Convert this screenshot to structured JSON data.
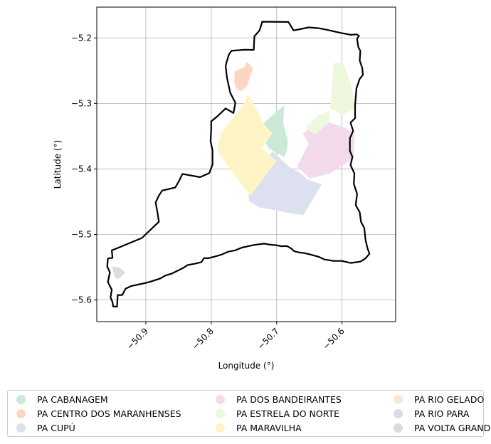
{
  "chart_data": {
    "type": "map",
    "xlabel": "Longitude (°)",
    "ylabel": "Latitude (°)",
    "xlim": [
      -50.975,
      -50.518
    ],
    "ylim": [
      -5.633,
      -5.153
    ],
    "xticks": [
      -50.9,
      -50.8,
      -50.7,
      -50.6
    ],
    "xtick_labels": [
      "−50.9",
      "−50.8",
      "−50.7",
      "−50.6"
    ],
    "yticks": [
      -5.2,
      -5.3,
      -5.4,
      -5.5,
      -5.6
    ],
    "ytick_labels": [
      "−5.2",
      "−5.3",
      "−5.4",
      "−5.5",
      "−5.6"
    ],
    "grid": true,
    "legend_position": "bottom",
    "boundary": {
      "color": "#000000",
      "coordinates": [
        [
          -50.722,
          -5.1753
        ],
        [
          -50.682,
          -5.1757
        ],
        [
          -50.674,
          -5.1886
        ],
        [
          -50.651,
          -5.1839
        ],
        [
          -50.636,
          -5.1851
        ],
        [
          -50.624,
          -5.1874
        ],
        [
          -50.601,
          -5.1925
        ],
        [
          -50.586,
          -5.1953
        ],
        [
          -50.578,
          -5.1945
        ],
        [
          -50.574,
          -5.1968
        ],
        [
          -50.577,
          -5.2015
        ],
        [
          -50.575,
          -5.2143
        ],
        [
          -50.572,
          -5.2198
        ],
        [
          -50.573,
          -5.2347
        ],
        [
          -50.569,
          -5.2461
        ],
        [
          -50.568,
          -5.2564
        ],
        [
          -50.573,
          -5.2625
        ],
        [
          -50.578,
          -5.2771
        ],
        [
          -50.58,
          -5.3026
        ],
        [
          -50.58,
          -5.3224
        ],
        [
          -50.587,
          -5.3294
        ],
        [
          -50.583,
          -5.3418
        ],
        [
          -50.588,
          -5.3531
        ],
        [
          -50.588,
          -5.3726
        ],
        [
          -50.584,
          -5.3815
        ],
        [
          -50.587,
          -5.3941
        ],
        [
          -50.581,
          -5.407
        ],
        [
          -50.582,
          -5.4226
        ],
        [
          -50.577,
          -5.438
        ],
        [
          -50.579,
          -5.4553
        ],
        [
          -50.573,
          -5.466
        ],
        [
          -50.571,
          -5.4806
        ],
        [
          -50.566,
          -5.4901
        ],
        [
          -50.564,
          -5.5085
        ],
        [
          -50.561,
          -5.5212
        ],
        [
          -50.558,
          -5.5294
        ],
        [
          -50.564,
          -5.5365
        ],
        [
          -50.572,
          -5.5414
        ],
        [
          -50.587,
          -5.5435
        ],
        [
          -50.6,
          -5.5404
        ],
        [
          -50.614,
          -5.5403
        ],
        [
          -50.627,
          -5.5381
        ],
        [
          -50.636,
          -5.534
        ],
        [
          -50.648,
          -5.5307
        ],
        [
          -50.657,
          -5.5285
        ],
        [
          -50.665,
          -5.5275
        ],
        [
          -50.673,
          -5.5256
        ],
        [
          -50.678,
          -5.5213
        ],
        [
          -50.684,
          -5.5177
        ],
        [
          -50.693,
          -5.5179
        ],
        [
          -50.701,
          -5.5164
        ],
        [
          -50.712,
          -5.5153
        ],
        [
          -50.719,
          -5.514
        ],
        [
          -50.735,
          -5.516
        ],
        [
          -50.745,
          -5.5182
        ],
        [
          -50.753,
          -5.5201
        ],
        [
          -50.758,
          -5.522
        ],
        [
          -50.763,
          -5.5242
        ],
        [
          -50.774,
          -5.5262
        ],
        [
          -50.785,
          -5.531
        ],
        [
          -50.794,
          -5.5335
        ],
        [
          -50.805,
          -5.5363
        ],
        [
          -50.811,
          -5.536
        ],
        [
          -50.815,
          -5.5422
        ],
        [
          -50.826,
          -5.5448
        ],
        [
          -50.836,
          -5.5467
        ],
        [
          -50.842,
          -5.5506
        ],
        [
          -50.851,
          -5.5551
        ],
        [
          -50.861,
          -5.5599
        ],
        [
          -50.87,
          -5.5626
        ],
        [
          -50.878,
          -5.5672
        ],
        [
          -50.894,
          -5.5724
        ],
        [
          -50.902,
          -5.5744
        ],
        [
          -50.922,
          -5.5786
        ],
        [
          -50.931,
          -5.5827
        ],
        [
          -50.936,
          -5.5924
        ],
        [
          -50.943,
          -5.5924
        ],
        [
          -50.944,
          -5.6101
        ],
        [
          -50.95,
          -5.6101
        ],
        [
          -50.951,
          -5.6031
        ],
        [
          -50.954,
          -5.5962
        ],
        [
          -50.952,
          -5.5843
        ],
        [
          -50.958,
          -5.5724
        ],
        [
          -50.955,
          -5.5578
        ],
        [
          -50.959,
          -5.5487
        ],
        [
          -50.958,
          -5.5367
        ],
        [
          -50.951,
          -5.5356
        ],
        [
          -50.952,
          -5.5243
        ],
        [
          -50.939,
          -5.519
        ],
        [
          -50.906,
          -5.5054
        ],
        [
          -50.88,
          -5.4806
        ],
        [
          -50.882,
          -5.4678
        ],
        [
          -50.885,
          -5.4512
        ],
        [
          -50.88,
          -5.4406
        ],
        [
          -50.875,
          -5.433
        ],
        [
          -50.855,
          -5.4283
        ],
        [
          -50.849,
          -5.418
        ],
        [
          -50.844,
          -5.4075
        ],
        [
          -50.817,
          -5.4126
        ],
        [
          -50.803,
          -5.4062
        ],
        [
          -50.798,
          -5.3932
        ],
        [
          -50.798,
          -5.3714
        ],
        [
          -50.801,
          -5.3578
        ],
        [
          -50.8,
          -5.3395
        ],
        [
          -50.8,
          -5.3274
        ],
        [
          -50.79,
          -5.3192
        ],
        [
          -50.778,
          -5.3076
        ],
        [
          -50.766,
          -5.3146
        ],
        [
          -50.763,
          -5.2992
        ],
        [
          -50.771,
          -5.2835
        ],
        [
          -50.776,
          -5.2604
        ],
        [
          -50.778,
          -5.2427
        ],
        [
          -50.776,
          -5.2352
        ],
        [
          -50.773,
          -5.2255
        ],
        [
          -50.769,
          -5.2197
        ],
        [
          -50.749,
          -5.2181
        ],
        [
          -50.735,
          -5.2183
        ],
        [
          -50.734,
          -5.1975
        ],
        [
          -50.726,
          -5.1884
        ],
        [
          -50.722,
          -5.1753
        ]
      ]
    },
    "regions": [
      {
        "name": "PA CABANAGEM",
        "color": "#cce9d8",
        "coordinates": [
          [
            -50.688,
            -5.3024
          ],
          [
            -50.69,
            -5.3296
          ],
          [
            -50.683,
            -5.3565
          ],
          [
            -50.684,
            -5.3703
          ],
          [
            -50.688,
            -5.3824
          ],
          [
            -50.713,
            -5.3678
          ],
          [
            -50.722,
            -5.3486
          ],
          [
            -50.721,
            -5.3308
          ],
          [
            -50.688,
            -5.3024
          ]
        ]
      },
      {
        "name": "PA CENTRO DOS MARANHENSES",
        "color": "#fcd6c3",
        "coordinates": [
          [
            -50.764,
            -5.2508
          ],
          [
            -50.749,
            -5.2446
          ],
          [
            -50.745,
            -5.2362
          ],
          [
            -50.741,
            -5.2412
          ],
          [
            -50.736,
            -5.2467
          ],
          [
            -50.741,
            -5.2593
          ],
          [
            -50.744,
            -5.2717
          ],
          [
            -50.753,
            -5.2808
          ],
          [
            -50.761,
            -5.2788
          ],
          [
            -50.765,
            -5.2675
          ],
          [
            -50.764,
            -5.2508
          ]
        ]
      },
      {
        "name": "PA CUPÚ",
        "color": "#dde0ef",
        "coordinates": [
          [
            -50.706,
            -5.3728
          ],
          [
            -50.676,
            -5.4011
          ],
          [
            -50.666,
            -5.4045
          ],
          [
            -50.652,
            -5.4163
          ],
          [
            -50.631,
            -5.4238
          ],
          [
            -50.659,
            -5.4702
          ],
          [
            -50.678,
            -5.4677
          ],
          [
            -50.701,
            -5.463
          ],
          [
            -50.726,
            -5.4588
          ],
          [
            -50.742,
            -5.4495
          ],
          [
            -50.743,
            -5.4385
          ],
          [
            -50.722,
            -5.3945
          ],
          [
            -50.706,
            -5.3728
          ]
        ]
      },
      {
        "name": "PA DOS BANDEIRANTES",
        "color": "#f4dbeb",
        "coordinates": [
          [
            -50.629,
            -5.3264
          ],
          [
            -50.66,
            -5.3453
          ],
          [
            -50.651,
            -5.3618
          ],
          [
            -50.669,
            -5.3963
          ],
          [
            -50.649,
            -5.4145
          ],
          [
            -50.618,
            -5.4067
          ],
          [
            -50.582,
            -5.3841
          ],
          [
            -50.581,
            -5.3452
          ],
          [
            -50.601,
            -5.3349
          ],
          [
            -50.629,
            -5.3264
          ]
        ]
      },
      {
        "name": "PA ESTRELA DO NORTE",
        "color": "#edf8dd",
        "coordinates": [
          [
            -50.613,
            -5.2383
          ],
          [
            -50.598,
            -5.2393
          ],
          [
            -50.586,
            -5.2711
          ],
          [
            -50.58,
            -5.3072
          ],
          [
            -50.6,
            -5.3176
          ],
          [
            -50.616,
            -5.3076
          ],
          [
            -50.625,
            -5.3137
          ],
          [
            -50.638,
            -5.3192
          ],
          [
            -50.655,
            -5.3376
          ],
          [
            -50.642,
            -5.3476
          ],
          [
            -50.62,
            -5.3294
          ],
          [
            -50.613,
            -5.2383
          ]
        ]
      },
      {
        "name": "PA MARAVILHA",
        "color": "#fff4c5",
        "coordinates": [
          [
            -50.744,
            -5.285
          ],
          [
            -50.734,
            -5.3029
          ],
          [
            -50.719,
            -5.332
          ],
          [
            -50.707,
            -5.3459
          ],
          [
            -50.722,
            -5.3683
          ],
          [
            -50.7,
            -5.388
          ],
          [
            -50.74,
            -5.4412
          ],
          [
            -50.762,
            -5.4128
          ],
          [
            -50.791,
            -5.3726
          ],
          [
            -50.786,
            -5.3463
          ],
          [
            -50.767,
            -5.3227
          ],
          [
            -50.749,
            -5.2988
          ],
          [
            -50.744,
            -5.285
          ]
        ]
      },
      {
        "name": "PA RIO GELADO",
        "color": "#fbe6d6",
        "coordinates": []
      },
      {
        "name": "PA RIO PARA",
        "color": "#dcdcdc",
        "coordinates": [
          [
            -50.952,
            -5.5489
          ],
          [
            -50.947,
            -5.566
          ],
          [
            -50.942,
            -5.5678
          ],
          [
            -50.937,
            -5.5637
          ],
          [
            -50.931,
            -5.5579
          ],
          [
            -50.941,
            -5.5503
          ],
          [
            -50.952,
            -5.5489
          ]
        ]
      },
      {
        "name": "PA VOLTA GRANDE",
        "color": "#dadada",
        "coordinates": []
      }
    ]
  }
}
